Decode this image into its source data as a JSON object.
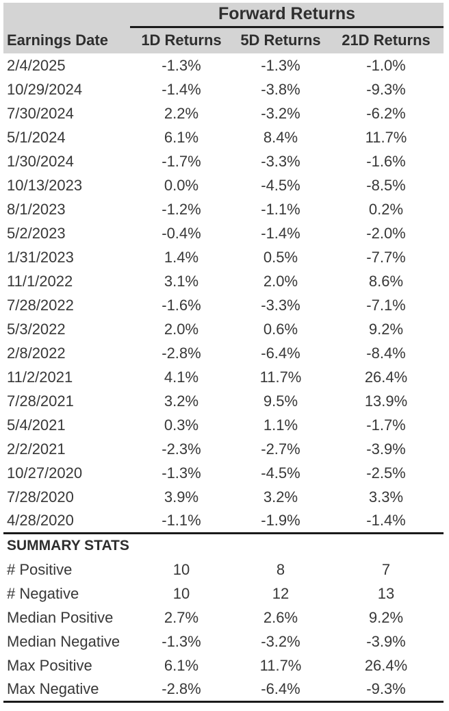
{
  "chart_data": {
    "type": "table",
    "title": "Forward Returns",
    "columns": [
      "Earnings Date",
      "1D Returns",
      "5D Returns",
      "21D Returns"
    ],
    "rows": [
      [
        "2/4/2025",
        "-1.3%",
        "-1.3%",
        "-1.0%"
      ],
      [
        "10/29/2024",
        "-1.4%",
        "-3.8%",
        "-9.3%"
      ],
      [
        "7/30/2024",
        "2.2%",
        "-3.2%",
        "-6.2%"
      ],
      [
        "5/1/2024",
        "6.1%",
        "8.4%",
        "11.7%"
      ],
      [
        "1/30/2024",
        "-1.7%",
        "-3.3%",
        "-1.6%"
      ],
      [
        "10/13/2023",
        "0.0%",
        "-4.5%",
        "-8.5%"
      ],
      [
        "8/1/2023",
        "-1.2%",
        "-1.1%",
        "0.2%"
      ],
      [
        "5/2/2023",
        "-0.4%",
        "-1.4%",
        "-2.0%"
      ],
      [
        "1/31/2023",
        "1.4%",
        "0.5%",
        "-7.7%"
      ],
      [
        "11/1/2022",
        "3.1%",
        "2.0%",
        "8.6%"
      ],
      [
        "7/28/2022",
        "-1.6%",
        "-3.3%",
        "-7.1%"
      ],
      [
        "5/3/2022",
        "2.0%",
        "0.6%",
        "9.2%"
      ],
      [
        "2/8/2022",
        "-2.8%",
        "-6.4%",
        "-8.4%"
      ],
      [
        "11/2/2021",
        "4.1%",
        "11.7%",
        "26.4%"
      ],
      [
        "7/28/2021",
        "3.2%",
        "9.5%",
        "13.9%"
      ],
      [
        "5/4/2021",
        "0.3%",
        "1.1%",
        "-1.7%"
      ],
      [
        "2/2/2021",
        "-2.3%",
        "-2.7%",
        "-3.9%"
      ],
      [
        "10/27/2020",
        "-1.3%",
        "-4.5%",
        "-2.5%"
      ],
      [
        "7/28/2020",
        "3.9%",
        "3.2%",
        "3.3%"
      ],
      [
        "4/28/2020",
        "-1.1%",
        "-1.9%",
        "-1.4%"
      ]
    ],
    "summary_title": "SUMMARY STATS",
    "summary_rows": [
      [
        "# Positive",
        "10",
        "8",
        "7"
      ],
      [
        "# Negative",
        "10",
        "12",
        "13"
      ],
      [
        "Median Positive",
        "2.7%",
        "2.6%",
        "9.2%"
      ],
      [
        "Median Negative",
        "-1.3%",
        "-3.2%",
        "-3.9%"
      ],
      [
        "Max Positive",
        "6.1%",
        "11.7%",
        "26.4%"
      ],
      [
        "Max Negative",
        "-2.8%",
        "-6.4%",
        "-9.3%"
      ]
    ],
    "layout": {
      "header_bg": "#d4d4d4",
      "rule_color": "#1a1a1a",
      "text_color": "#373737",
      "grid": "none",
      "legend": "none"
    }
  }
}
